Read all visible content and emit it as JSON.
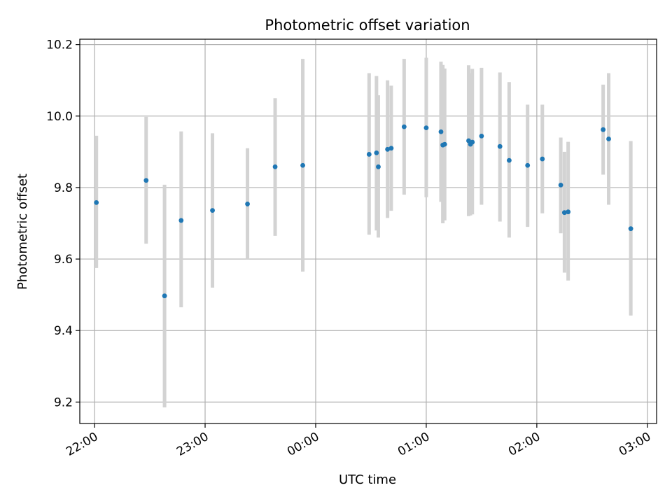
{
  "chart_data": {
    "type": "scatter",
    "title": "Photometric offset variation",
    "xlabel": "UTC time",
    "ylabel": "Photometric offset",
    "grid": true,
    "xlim": [
      "21:52",
      "03:05"
    ],
    "ylim": [
      9.14,
      10.215
    ],
    "x_ticks": [
      "22:00",
      "23:00",
      "00:00",
      "01:00",
      "02:00",
      "03:00"
    ],
    "y_ticks": [
      "9.2",
      "9.4",
      "9.6",
      "9.8",
      "10.0",
      "10.2"
    ],
    "colors": {
      "point": "#1f77b4",
      "errorbar": "#d3d3d3",
      "grid": "#b0b0b0"
    },
    "points": [
      {
        "x": "22:01",
        "y": 9.758,
        "ylow": 9.575,
        "yhigh": 9.945
      },
      {
        "x": "22:28",
        "y": 9.82,
        "ylow": 9.643,
        "yhigh": 9.998
      },
      {
        "x": "22:38",
        "y": 9.497,
        "ylow": 9.185,
        "yhigh": 9.808
      },
      {
        "x": "22:47",
        "y": 9.708,
        "ylow": 9.465,
        "yhigh": 9.957
      },
      {
        "x": "23:04",
        "y": 9.736,
        "ylow": 9.52,
        "yhigh": 9.952
      },
      {
        "x": "23:23",
        "y": 9.754,
        "ylow": 9.6,
        "yhigh": 9.91
      },
      {
        "x": "23:38",
        "y": 9.858,
        "ylow": 9.665,
        "yhigh": 10.05
      },
      {
        "x": "23:53",
        "y": 9.862,
        "ylow": 9.565,
        "yhigh": 10.16
      },
      {
        "x": "00:29",
        "y": 9.893,
        "ylow": 9.668,
        "yhigh": 10.12
      },
      {
        "x": "00:33",
        "y": 9.897,
        "ylow": 9.68,
        "yhigh": 10.112
      },
      {
        "x": "00:34",
        "y": 9.858,
        "ylow": 9.66,
        "yhigh": 10.058
      },
      {
        "x": "00:39",
        "y": 9.907,
        "ylow": 9.715,
        "yhigh": 10.1
      },
      {
        "x": "00:41",
        "y": 9.91,
        "ylow": 9.735,
        "yhigh": 10.085
      },
      {
        "x": "00:48",
        "y": 9.97,
        "ylow": 9.78,
        "yhigh": 10.16
      },
      {
        "x": "01:00",
        "y": 9.967,
        "ylow": 9.773,
        "yhigh": 10.163
      },
      {
        "x": "01:08",
        "y": 9.956,
        "ylow": 9.76,
        "yhigh": 10.152
      },
      {
        "x": "01:09",
        "y": 9.919,
        "ylow": 9.7,
        "yhigh": 10.143
      },
      {
        "x": "01:10",
        "y": 9.921,
        "ylow": 9.708,
        "yhigh": 10.133
      },
      {
        "x": "01:23",
        "y": 9.931,
        "ylow": 9.72,
        "yhigh": 10.142
      },
      {
        "x": "01:24",
        "y": 9.921,
        "ylow": 9.722,
        "yhigh": 10.12
      },
      {
        "x": "01:25",
        "y": 9.927,
        "ylow": 9.725,
        "yhigh": 10.132
      },
      {
        "x": "01:30",
        "y": 9.944,
        "ylow": 9.752,
        "yhigh": 10.135
      },
      {
        "x": "01:40",
        "y": 9.915,
        "ylow": 9.705,
        "yhigh": 10.122
      },
      {
        "x": "01:45",
        "y": 9.876,
        "ylow": 9.66,
        "yhigh": 10.095
      },
      {
        "x": "01:55",
        "y": 9.862,
        "ylow": 9.69,
        "yhigh": 10.032
      },
      {
        "x": "02:03",
        "y": 9.88,
        "ylow": 9.728,
        "yhigh": 10.032
      },
      {
        "x": "02:13",
        "y": 9.807,
        "ylow": 9.672,
        "yhigh": 9.94
      },
      {
        "x": "02:15",
        "y": 9.73,
        "ylow": 9.562,
        "yhigh": 9.9
      },
      {
        "x": "02:17",
        "y": 9.732,
        "ylow": 9.54,
        "yhigh": 9.928
      },
      {
        "x": "02:36",
        "y": 9.962,
        "ylow": 9.836,
        "yhigh": 10.088
      },
      {
        "x": "02:39",
        "y": 9.936,
        "ylow": 9.752,
        "yhigh": 10.12
      },
      {
        "x": "02:51",
        "y": 9.685,
        "ylow": 9.442,
        "yhigh": 9.93
      }
    ]
  }
}
